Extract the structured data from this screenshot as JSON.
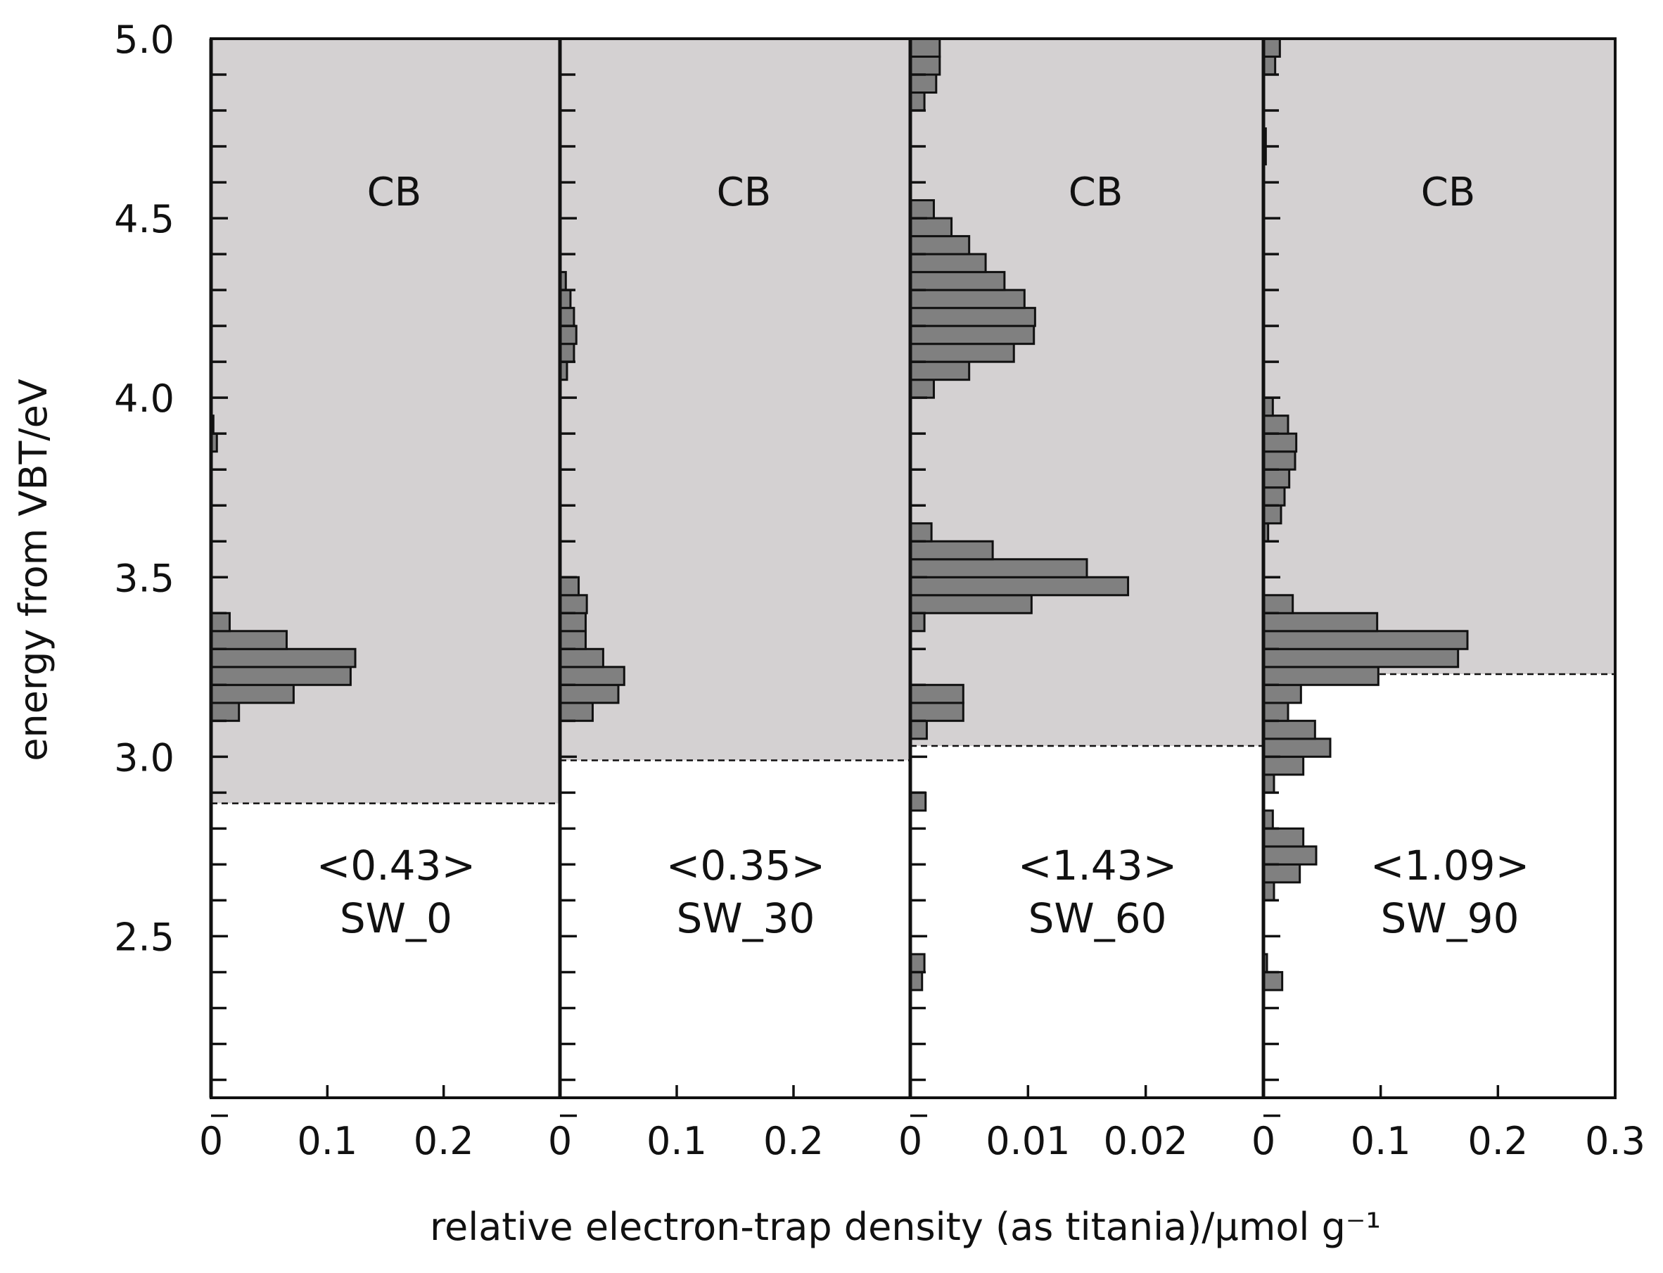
{
  "chart_data": {
    "type": "bar",
    "orientation": "horizontal",
    "ylabel": "energy from VBT/eV",
    "xlabel": "relative electron-trap density (as titania)/μmol g⁻¹",
    "y_tick_labels": [
      "5.0",
      "4.5",
      "4.0",
      "3.5",
      "3.0",
      "2.5"
    ],
    "y_ticks": [
      5.0,
      4.5,
      4.0,
      3.5,
      3.0,
      2.5
    ],
    "ylim": [
      2.05,
      5.0
    ],
    "bin_width": 0.05,
    "region_label": "CB",
    "panels": [
      {
        "name": "SW_0",
        "total": "<0.43>",
        "cb_edge": 2.87,
        "xlim": [
          0,
          0.3
        ],
        "x_ticks": [
          0,
          0.1,
          0.2
        ],
        "x_tick_labels": [
          "0",
          "0.1",
          "0.2"
        ],
        "bins": [
          {
            "e": 3.125,
            "v": 0.024
          },
          {
            "e": 3.175,
            "v": 0.071
          },
          {
            "e": 3.225,
            "v": 0.12
          },
          {
            "e": 3.275,
            "v": 0.124
          },
          {
            "e": 3.325,
            "v": 0.065
          },
          {
            "e": 3.375,
            "v": 0.016
          },
          {
            "e": 3.875,
            "v": 0.005
          },
          {
            "e": 3.925,
            "v": 0.002
          }
        ]
      },
      {
        "name": "SW_30",
        "total": "<0.35>",
        "cb_edge": 2.99,
        "xlim": [
          0,
          0.3
        ],
        "x_ticks": [
          0,
          0.1,
          0.2
        ],
        "x_tick_labels": [
          "0",
          "0.1",
          "0.2"
        ],
        "bins": [
          {
            "e": 3.125,
            "v": 0.028
          },
          {
            "e": 3.175,
            "v": 0.05
          },
          {
            "e": 3.225,
            "v": 0.055
          },
          {
            "e": 3.275,
            "v": 0.037
          },
          {
            "e": 3.325,
            "v": 0.022
          },
          {
            "e": 3.375,
            "v": 0.022
          },
          {
            "e": 3.425,
            "v": 0.023
          },
          {
            "e": 3.475,
            "v": 0.016
          },
          {
            "e": 4.075,
            "v": 0.006
          },
          {
            "e": 4.125,
            "v": 0.012
          },
          {
            "e": 4.175,
            "v": 0.014
          },
          {
            "e": 4.225,
            "v": 0.012
          },
          {
            "e": 4.275,
            "v": 0.009
          },
          {
            "e": 4.325,
            "v": 0.005
          }
        ]
      },
      {
        "name": "SW_60",
        "total": "<1.43>",
        "cb_edge": 3.03,
        "xlim": [
          0,
          0.03
        ],
        "x_ticks": [
          0,
          0.01,
          0.02
        ],
        "x_tick_labels": [
          "0",
          "0.01",
          "0.02"
        ],
        "bins": [
          {
            "e": 2.375,
            "v": 0.001
          },
          {
            "e": 2.425,
            "v": 0.0012
          },
          {
            "e": 2.875,
            "v": 0.0013
          },
          {
            "e": 3.075,
            "v": 0.0014
          },
          {
            "e": 3.125,
            "v": 0.0045
          },
          {
            "e": 3.175,
            "v": 0.0045
          },
          {
            "e": 3.375,
            "v": 0.0012
          },
          {
            "e": 3.425,
            "v": 0.0103
          },
          {
            "e": 3.475,
            "v": 0.0185
          },
          {
            "e": 3.525,
            "v": 0.015
          },
          {
            "e": 3.575,
            "v": 0.007
          },
          {
            "e": 3.625,
            "v": 0.0018
          },
          {
            "e": 4.025,
            "v": 0.002
          },
          {
            "e": 4.075,
            "v": 0.005
          },
          {
            "e": 4.125,
            "v": 0.0088
          },
          {
            "e": 4.175,
            "v": 0.0105
          },
          {
            "e": 4.225,
            "v": 0.0106
          },
          {
            "e": 4.275,
            "v": 0.0097
          },
          {
            "e": 4.325,
            "v": 0.008
          },
          {
            "e": 4.375,
            "v": 0.0064
          },
          {
            "e": 4.425,
            "v": 0.005
          },
          {
            "e": 4.475,
            "v": 0.0035
          },
          {
            "e": 4.525,
            "v": 0.002
          },
          {
            "e": 4.825,
            "v": 0.0012
          },
          {
            "e": 4.875,
            "v": 0.0022
          },
          {
            "e": 4.925,
            "v": 0.0025
          },
          {
            "e": 4.975,
            "v": 0.0025
          }
        ]
      },
      {
        "name": "SW_90",
        "total": "<1.09>",
        "cb_edge": 3.23,
        "xlim": [
          0,
          0.3
        ],
        "x_ticks": [
          0,
          0.1,
          0.2,
          0.3
        ],
        "x_tick_labels": [
          "0",
          "0.1",
          "0.2",
          "0.3"
        ],
        "bins": [
          {
            "e": 2.375,
            "v": 0.016
          },
          {
            "e": 2.425,
            "v": 0.003
          },
          {
            "e": 2.625,
            "v": 0.009
          },
          {
            "e": 2.675,
            "v": 0.031
          },
          {
            "e": 2.725,
            "v": 0.045
          },
          {
            "e": 2.775,
            "v": 0.034
          },
          {
            "e": 2.825,
            "v": 0.008
          },
          {
            "e": 2.925,
            "v": 0.009
          },
          {
            "e": 2.975,
            "v": 0.034
          },
          {
            "e": 3.025,
            "v": 0.057
          },
          {
            "e": 3.075,
            "v": 0.044
          },
          {
            "e": 3.125,
            "v": 0.021
          },
          {
            "e": 3.175,
            "v": 0.032
          },
          {
            "e": 3.225,
            "v": 0.098
          },
          {
            "e": 3.275,
            "v": 0.166
          },
          {
            "e": 3.325,
            "v": 0.174
          },
          {
            "e": 3.375,
            "v": 0.097
          },
          {
            "e": 3.425,
            "v": 0.025
          },
          {
            "e": 3.625,
            "v": 0.004
          },
          {
            "e": 3.675,
            "v": 0.015
          },
          {
            "e": 3.725,
            "v": 0.018
          },
          {
            "e": 3.775,
            "v": 0.022
          },
          {
            "e": 3.825,
            "v": 0.027
          },
          {
            "e": 3.875,
            "v": 0.028
          },
          {
            "e": 3.925,
            "v": 0.021
          },
          {
            "e": 3.975,
            "v": 0.008
          },
          {
            "e": 4.675,
            "v": 0.002
          },
          {
            "e": 4.725,
            "v": 0.002
          },
          {
            "e": 4.925,
            "v": 0.01
          },
          {
            "e": 4.975,
            "v": 0.014
          }
        ]
      }
    ]
  },
  "colors": {
    "cb_region": "#d4d1d2",
    "bar_fill": "#808080",
    "axis": "#111111"
  }
}
